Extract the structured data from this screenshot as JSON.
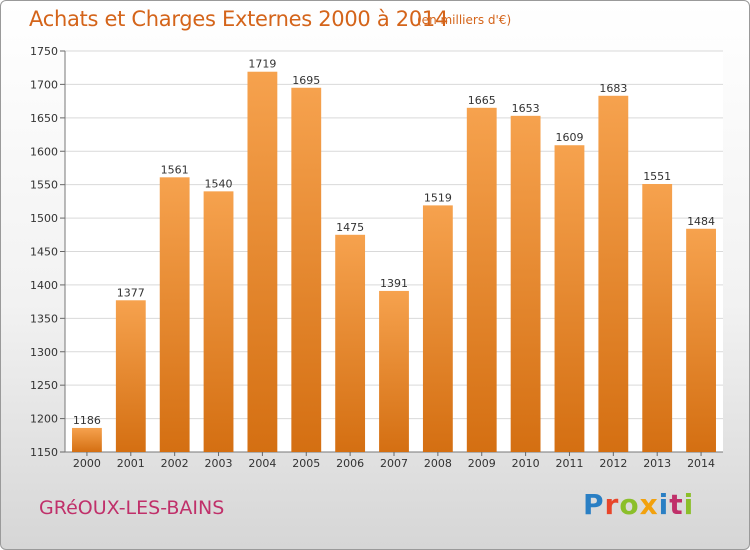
{
  "header": {
    "title": "Achats et Charges Externes 2000 à 2014",
    "unit": "(en milliers d'€)"
  },
  "footer": {
    "city": "GRéOUX-LES-BAINS",
    "logo_text": "Proxiti",
    "logo_colors": [
      "#2a7fc4",
      "#e8452a",
      "#8bbf2a",
      "#f2a10d",
      "#2a7fc4",
      "#c0306a",
      "#8bbf2a"
    ]
  },
  "colors": {
    "bar_top": "#f6a24e",
    "bar_bottom": "#d46f12",
    "title": "#d4641a",
    "city": "#c0306a"
  },
  "chart_data": {
    "type": "bar",
    "categories": [
      "2000",
      "2001",
      "2002",
      "2003",
      "2004",
      "2005",
      "2006",
      "2007",
      "2008",
      "2009",
      "2010",
      "2011",
      "2012",
      "2013",
      "2014"
    ],
    "values": [
      1186,
      1377,
      1561,
      1540,
      1719,
      1695,
      1475,
      1391,
      1519,
      1665,
      1653,
      1609,
      1683,
      1551,
      1484
    ],
    "ylim": [
      1150,
      1750
    ],
    "yticks": [
      1150,
      1200,
      1250,
      1300,
      1350,
      1400,
      1450,
      1500,
      1550,
      1600,
      1650,
      1700,
      1750
    ],
    "grid": true,
    "title": "Achats et Charges Externes 2000 à 2014",
    "xlabel": "",
    "ylabel": ""
  }
}
